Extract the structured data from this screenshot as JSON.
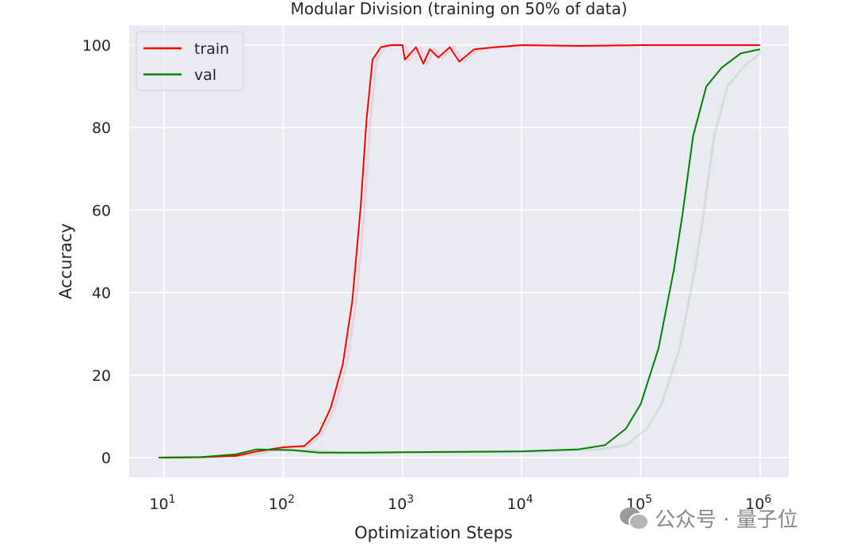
{
  "chart_data": {
    "type": "line",
    "title": "Modular Division (training on 50% of data)",
    "xlabel": "Optimization Steps",
    "ylabel": "Accuracy",
    "xscale": "log",
    "xlim": [
      5.1,
      1740000
    ],
    "ylim": [
      -4.8,
      104.8
    ],
    "grid": true,
    "legend_position": "top-left",
    "x_ticks": [
      10,
      100,
      1000,
      10000,
      100000,
      1000000
    ],
    "x_tick_labels": [
      {
        "base": "10",
        "exp": "1"
      },
      {
        "base": "10",
        "exp": "2"
      },
      {
        "base": "10",
        "exp": "3"
      },
      {
        "base": "10",
        "exp": "4"
      },
      {
        "base": "10",
        "exp": "5"
      },
      {
        "base": "10",
        "exp": "6"
      }
    ],
    "y_ticks": [
      0,
      20,
      40,
      60,
      80,
      100
    ],
    "y_tick_labels": [
      "0",
      "20",
      "40",
      "60",
      "80",
      "100"
    ],
    "background_color": "#eaeaf2",
    "series": [
      {
        "name": "train",
        "color": "#ff0000",
        "x": [
          9,
          20,
          40,
          60,
          100,
          150,
          200,
          250,
          316,
          380,
          447,
          500,
          562,
          660,
          800,
          1000,
          1050,
          1300,
          1500,
          1700,
          2000,
          2500,
          3000,
          4000,
          6000,
          10000,
          30000,
          100000,
          1000000
        ],
        "y": [
          0,
          0.1,
          0.4,
          1.5,
          2.5,
          2.8,
          6,
          12,
          22.6,
          38,
          61,
          82,
          96.5,
          99.5,
          100,
          100,
          96.5,
          99.5,
          95.5,
          99,
          97,
          99.5,
          96,
          99,
          99.5,
          100,
          99.8,
          100,
          100
        ]
      },
      {
        "name": "val",
        "color": "#008000",
        "x": [
          9,
          20,
          40,
          60,
          80,
          120,
          200,
          500,
          1000,
          3000,
          10000,
          30000,
          50000,
          75000,
          100000,
          141000,
          190000,
          224000,
          275000,
          355000,
          480000,
          690000,
          1000000
        ],
        "y": [
          0,
          0.1,
          0.8,
          2,
          1.9,
          1.8,
          1.2,
          1.2,
          1.3,
          1.4,
          1.5,
          2,
          3,
          7,
          13,
          26.5,
          45.7,
          59,
          78,
          90,
          94.6,
          98,
          99
        ]
      }
    ]
  },
  "watermark": {
    "text": "公众号 · 量子位",
    "icon": "wechat-icon"
  }
}
